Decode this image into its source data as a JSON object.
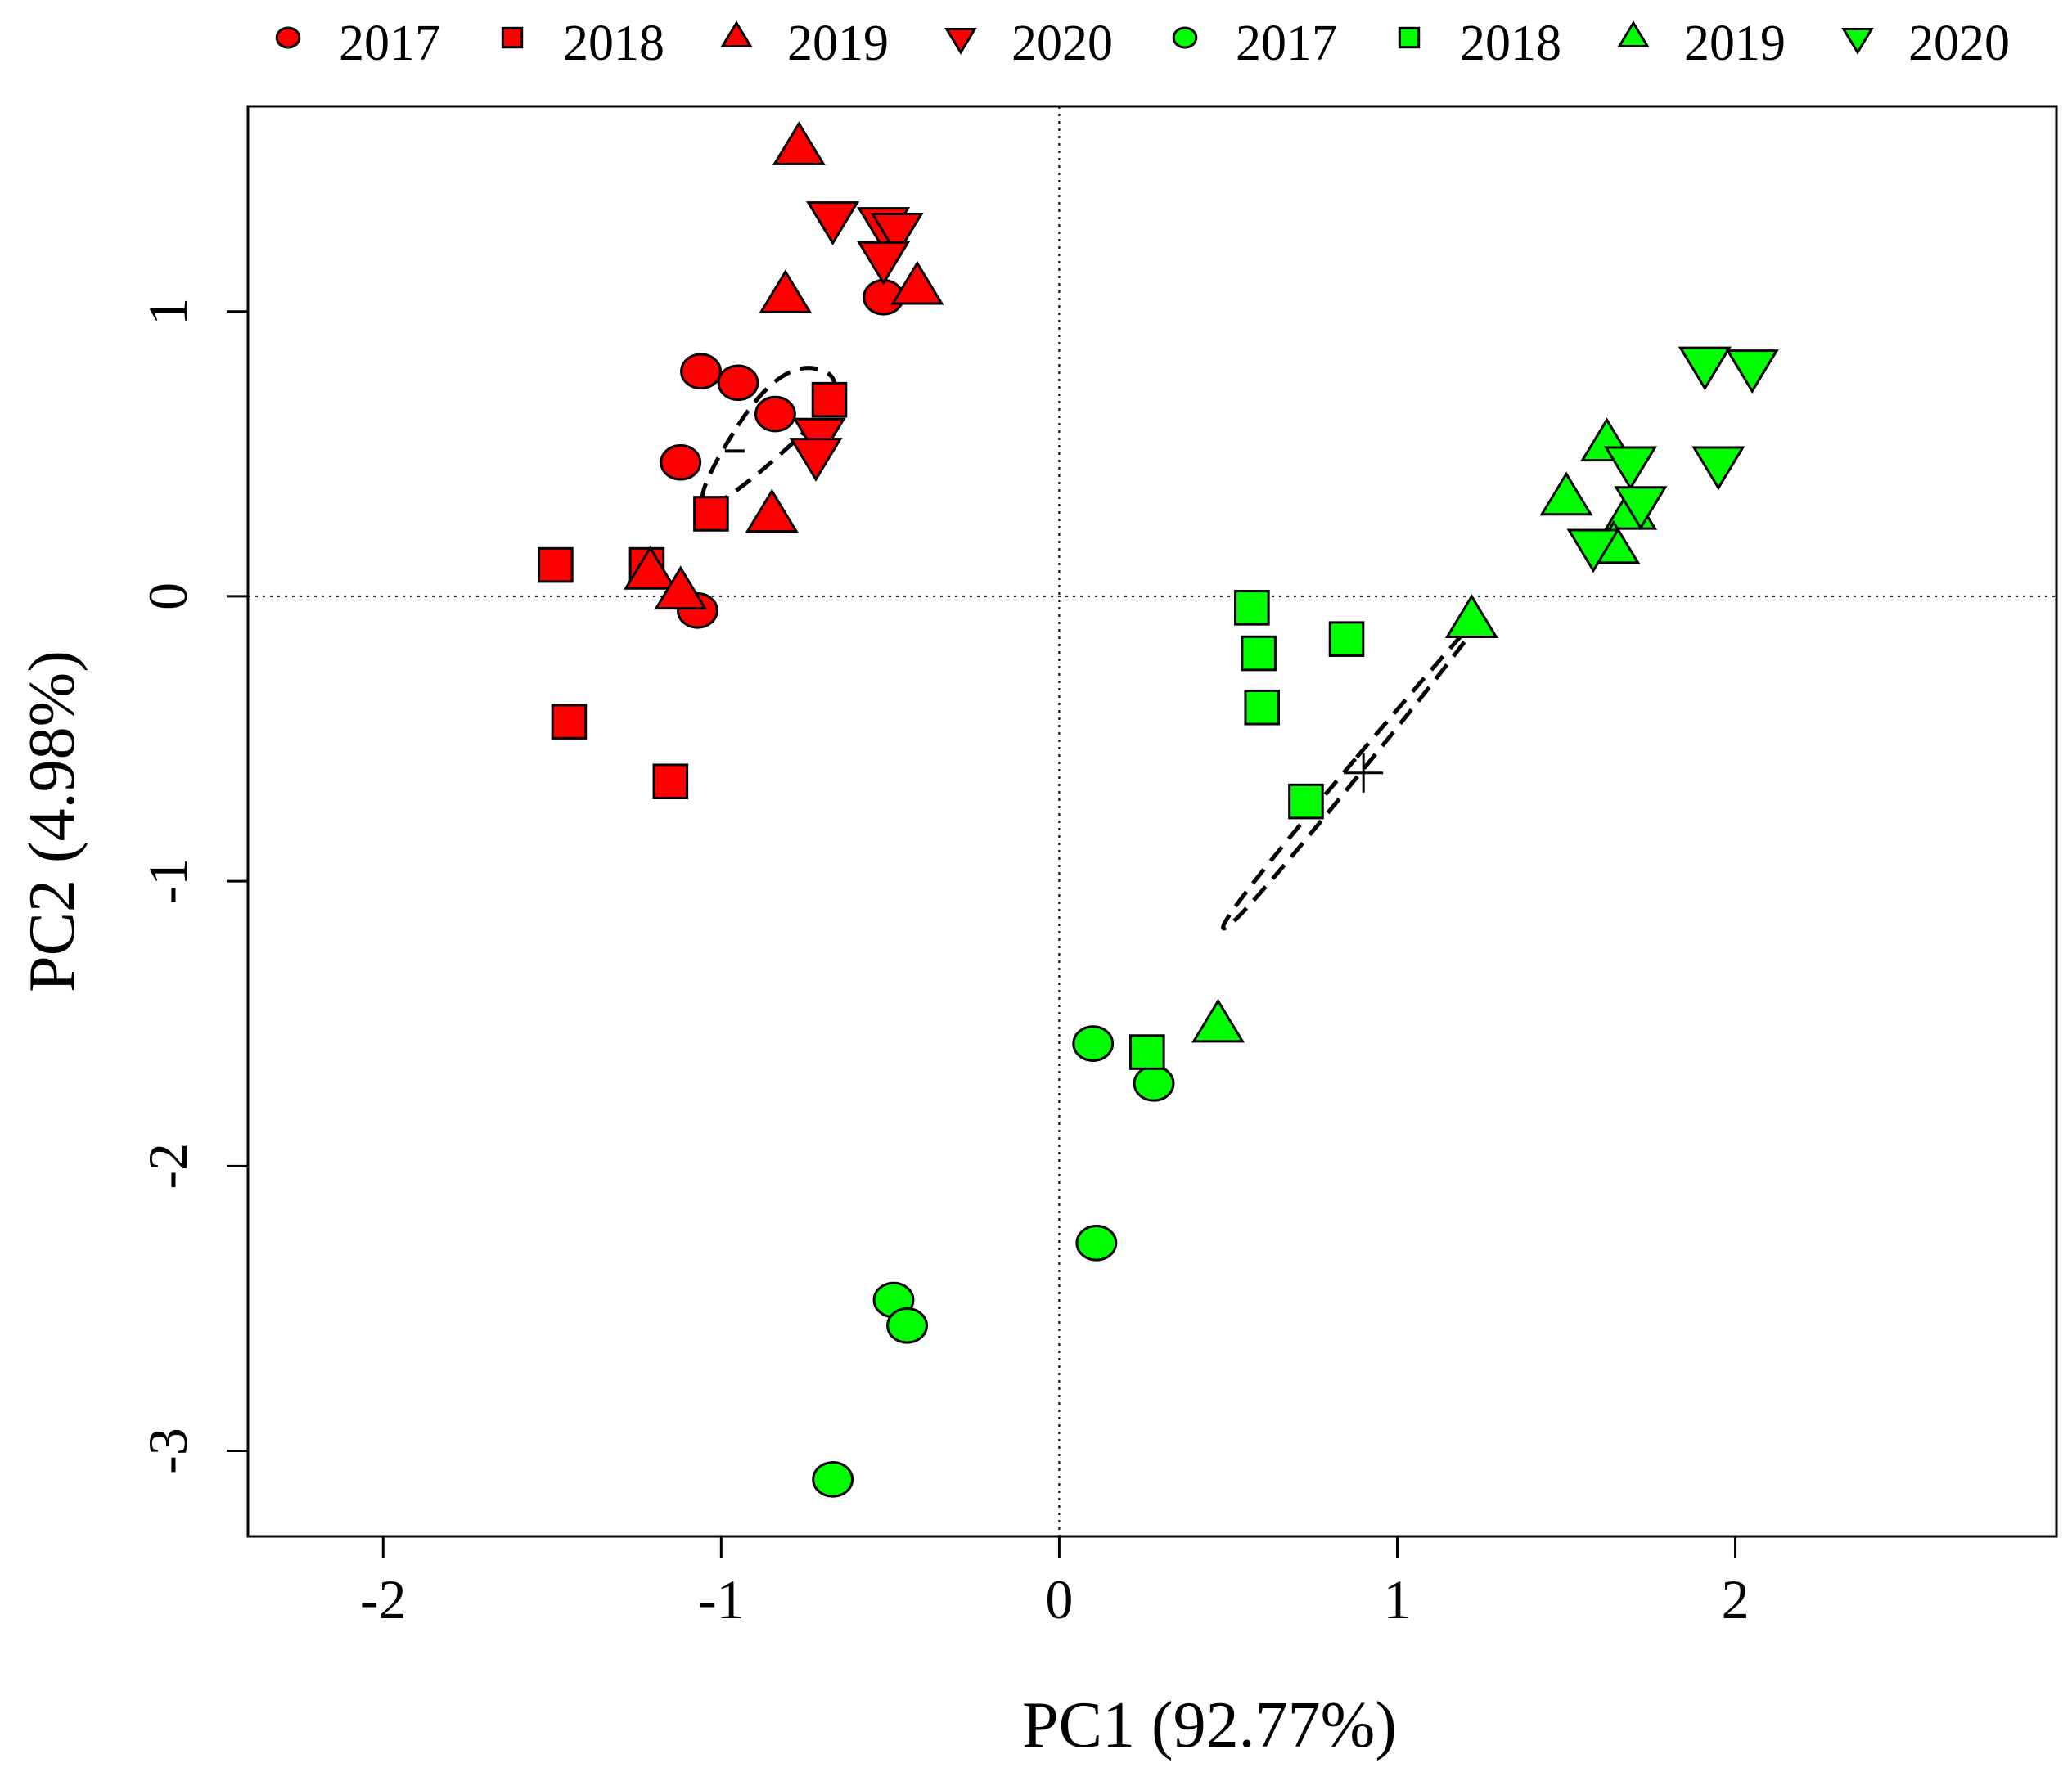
{
  "chart_data": {
    "type": "scatter",
    "title": "",
    "xlabel": "PC1 (92.77%)",
    "ylabel": "PC2 (4.98%)",
    "xlim": [
      -2.4,
      2.95
    ],
    "ylim": [
      -3.3,
      1.72
    ],
    "xticks": [
      -2,
      -1,
      0,
      1,
      2
    ],
    "yticks": [
      -3,
      -2,
      -1,
      0,
      1
    ],
    "xtick_labels": [
      "-2",
      "-1",
      "0",
      "1",
      "2"
    ],
    "ytick_labels": [
      "-3",
      "-2",
      "-1",
      "0",
      "1"
    ],
    "reference_lines": {
      "x": 0,
      "y": 0,
      "style": "dotted"
    },
    "legend_position": "top",
    "colors": {
      "red": "#ff0000",
      "green": "#00ff00",
      "outline": "#000000"
    },
    "series": [
      {
        "name": "2017",
        "group": "red",
        "marker": "circle",
        "x": [
          -0.52,
          -1.06,
          -0.95,
          -0.84,
          -1.12,
          -1.07
        ],
        "y": [
          1.05,
          0.79,
          0.75,
          0.64,
          0.47,
          -0.05
        ]
      },
      {
        "name": "2018",
        "group": "red",
        "marker": "square",
        "x": [
          -0.68,
          -1.03,
          -1.49,
          -1.22,
          -1.45,
          -1.15
        ],
        "y": [
          0.69,
          0.29,
          0.11,
          0.11,
          -0.44,
          -0.65
        ]
      },
      {
        "name": "2019",
        "group": "red",
        "marker": "triangle-up",
        "x": [
          -0.77,
          -0.81,
          -0.42,
          -0.85,
          -1.21,
          -1.12
        ],
        "y": [
          1.57,
          1.05,
          1.08,
          0.28,
          0.08,
          0.01
        ]
      },
      {
        "name": "2020",
        "group": "red",
        "marker": "triangle-down",
        "x": [
          -0.67,
          -0.52,
          -0.48,
          -0.52,
          -0.71,
          -0.72
        ],
        "y": [
          1.33,
          1.31,
          1.29,
          1.19,
          0.57,
          0.5
        ]
      },
      {
        "name": "2017",
        "group": "green",
        "marker": "circle",
        "x": [
          0.1,
          0.28,
          0.11,
          -0.49,
          -0.45,
          -0.67
        ],
        "y": [
          -1.57,
          -1.71,
          -2.27,
          -2.47,
          -2.56,
          -3.1
        ]
      },
      {
        "name": "2018",
        "group": "green",
        "marker": "square",
        "x": [
          0.57,
          0.59,
          0.6,
          0.85,
          0.73,
          0.26
        ],
        "y": [
          -0.04,
          -0.2,
          -0.39,
          -0.15,
          -0.72,
          -1.6
        ]
      },
      {
        "name": "2019",
        "group": "green",
        "marker": "triangle-up",
        "x": [
          1.22,
          1.62,
          1.5,
          1.69,
          1.64,
          0.47
        ],
        "y": [
          -0.09,
          0.53,
          0.34,
          0.29,
          0.17,
          -1.51
        ]
      },
      {
        "name": "2020",
        "group": "green",
        "marker": "triangle-down",
        "x": [
          1.91,
          2.05,
          1.95,
          1.69,
          1.72,
          1.58
        ],
        "y": [
          0.82,
          0.81,
          0.47,
          0.47,
          0.33,
          0.18
        ]
      }
    ],
    "ellipses": [
      {
        "group": "red",
        "center": [
          -0.96,
          0.51
        ],
        "points": [
          [
            -0.82,
            0.84
          ],
          [
            -0.59,
            0.75
          ],
          [
            -1.02,
            0.29
          ],
          [
            -1.08,
            0.36
          ]
        ]
      },
      {
        "group": "green",
        "center": [
          0.9,
          -0.62
        ],
        "points": [
          [
            1.29,
            0.01
          ],
          [
            1.22,
            -0.14
          ],
          [
            0.5,
            -1.19
          ],
          [
            0.47,
            -1.14
          ]
        ]
      }
    ],
    "center_marks": [
      {
        "group": "green",
        "symbol": "+",
        "x": 0.9,
        "y": -0.62
      }
    ]
  }
}
